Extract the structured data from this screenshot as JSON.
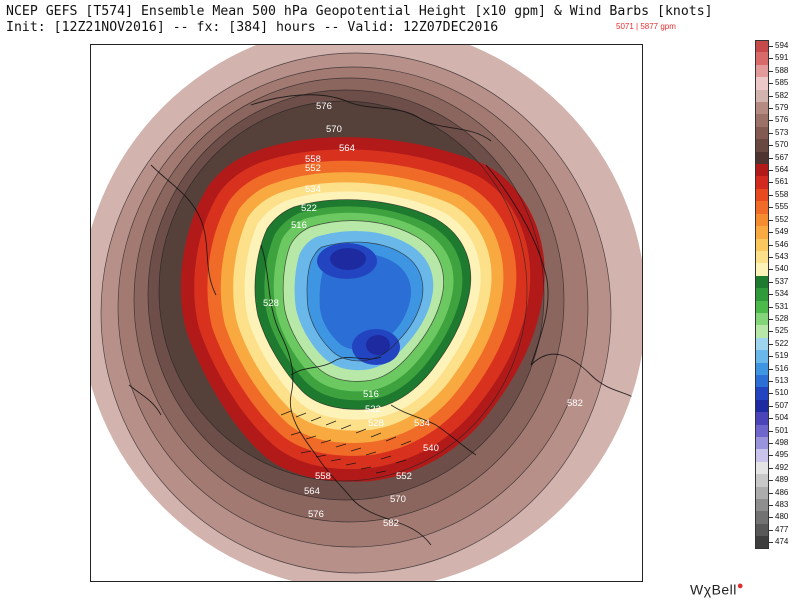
{
  "header": {
    "line1": "NCEP GEFS [T574] Ensemble Mean 500 hPa Geopotential Height [x10 gpm] & Wind Barbs [knots]",
    "line2": "Init: [12Z21NOV2016] -- fx: [384] hours -- Valid: 12Z07DEC2016",
    "range": "5071 | 5877 gpm"
  },
  "map": {
    "contour_labels": [
      "576",
      "570",
      "564",
      "558",
      "552",
      "534",
      "522",
      "516",
      "528",
      "582",
      "516",
      "522",
      "528",
      "534",
      "540",
      "552",
      "558",
      "564",
      "570",
      "576",
      "582"
    ]
  },
  "colorbar": {
    "levels": [
      {
        "label": "594",
        "color": "#c64a4a"
      },
      {
        "label": "591",
        "color": "#d86a6a"
      },
      {
        "label": "588",
        "color": "#e39a9a"
      },
      {
        "label": "585",
        "color": "#ecc8c8"
      },
      {
        "label": "582",
        "color": "#d3b3ae"
      },
      {
        "label": "579",
        "color": "#b48a82"
      },
      {
        "label": "576",
        "color": "#9c7168"
      },
      {
        "label": "573",
        "color": "#825a52"
      },
      {
        "label": "570",
        "color": "#6a4842"
      },
      {
        "label": "567",
        "color": "#4e3430"
      },
      {
        "label": "564",
        "color": "#b21a1a"
      },
      {
        "label": "561",
        "color": "#d22a1e"
      },
      {
        "label": "558",
        "color": "#e84a20"
      },
      {
        "label": "555",
        "color": "#f06a28"
      },
      {
        "label": "552",
        "color": "#f58c30"
      },
      {
        "label": "549",
        "color": "#f8aa40"
      },
      {
        "label": "546",
        "color": "#fbc860"
      },
      {
        "label": "543",
        "color": "#fde08a"
      },
      {
        "label": "540",
        "color": "#fdf2b8"
      },
      {
        "label": "537",
        "color": "#1e7a2e"
      },
      {
        "label": "534",
        "color": "#2e9a3a"
      },
      {
        "label": "531",
        "color": "#4cba4a"
      },
      {
        "label": "528",
        "color": "#84d47a"
      },
      {
        "label": "525",
        "color": "#b8e8a8"
      },
      {
        "label": "522",
        "color": "#9fd4ef"
      },
      {
        "label": "519",
        "color": "#6ab8ea"
      },
      {
        "label": "516",
        "color": "#3e96e2"
      },
      {
        "label": "513",
        "color": "#2a6ed6"
      },
      {
        "label": "510",
        "color": "#2244c0"
      },
      {
        "label": "507",
        "color": "#1e2aa0"
      },
      {
        "label": "504",
        "color": "#4a44b8"
      },
      {
        "label": "501",
        "color": "#6e66cc"
      },
      {
        "label": "498",
        "color": "#9a94dc"
      },
      {
        "label": "495",
        "color": "#c8c4ec"
      },
      {
        "label": "492",
        "color": "#e4e4e4"
      },
      {
        "label": "489",
        "color": "#c8c8c8"
      },
      {
        "label": "486",
        "color": "#acacac"
      },
      {
        "label": "483",
        "color": "#8e8e8e"
      },
      {
        "label": "480",
        "color": "#727272"
      },
      {
        "label": "477",
        "color": "#585858"
      },
      {
        "label": "474",
        "color": "#3e3e3e"
      }
    ]
  },
  "brand": {
    "text": "WχBell",
    "dot": "●"
  }
}
